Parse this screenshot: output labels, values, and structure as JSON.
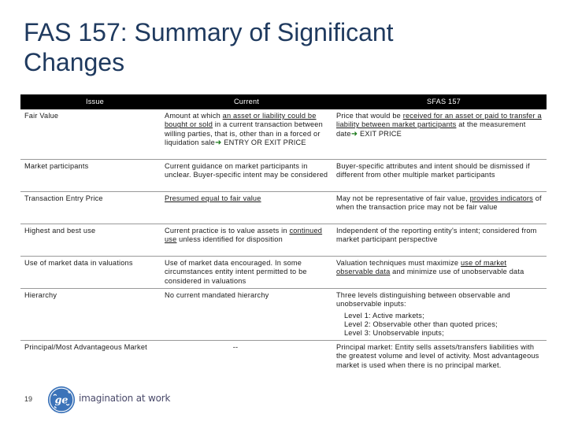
{
  "title": "FAS 157: Summary of Significant Changes",
  "table": {
    "headers": [
      "Issue",
      "Current",
      "SFAS 157"
    ],
    "rows": [
      {
        "issue": "Fair Value",
        "current_pre": "Amount at which ",
        "current_u": "an asset or liability could be bought or sold",
        "current_post": " in a current transaction between willing parties, that is, other than in a forced or liquidation sale",
        "current_arrow_text": " ENTRY OR EXIT PRICE",
        "sfas_pre": "Price that would be ",
        "sfas_u": "received for an asset or paid to transfer a liability between market participants",
        "sfas_post": " at the measurement date",
        "sfas_arrow_text": " EXIT PRICE"
      },
      {
        "issue": "Market participants",
        "current": "Current guidance on market participants in unclear. Buyer-specific intent may be considered",
        "sfas": "Buyer-specific attributes and intent should be dismissed if different from other multiple market participants"
      },
      {
        "issue": "Transaction Entry Price",
        "current_u": "Presumed equal to fair value",
        "sfas_pre": "May not be representative of fair value, ",
        "sfas_u": "provides indicators",
        "sfas_post": " of when the transaction price may not be fair value"
      },
      {
        "issue": "Highest and best use",
        "current_pre": "Current practice is to value assets in ",
        "current_u": "continued use",
        "current_post": " unless identified for disposition",
        "sfas": "Independent of the reporting entity's intent; considered from market participant perspective"
      },
      {
        "issue": "Use of market data in valuations",
        "current": "Use of market data encouraged. In some circumstances entity intent permitted to be considered in valuations",
        "sfas_pre": "Valuation techniques must maximize ",
        "sfas_u": "use of market observable data",
        "sfas_post": " and minimize use of unobservable data"
      },
      {
        "issue": "Hierarchy",
        "current": "No current mandated hierarchy",
        "sfas": "Three levels distinguishing between observable and unobservable inputs:",
        "levels": [
          "Level 1: Active markets;",
          "Level 2: Observable other than quoted prices;",
          "Level 3: Unobservable inputs;"
        ]
      },
      {
        "issue": "Principal/Most Advantageous Market",
        "current": "--",
        "sfas": "Principal market: Entity sells assets/transfers liabilities with the greatest volume and level of activity. Most advantageous market is used when there is no principal market."
      }
    ]
  },
  "footer": {
    "page_number": "19",
    "tagline": "imagination at work",
    "logo_icon": "ge-monogram-icon",
    "logo_color": "#3b73b9"
  }
}
